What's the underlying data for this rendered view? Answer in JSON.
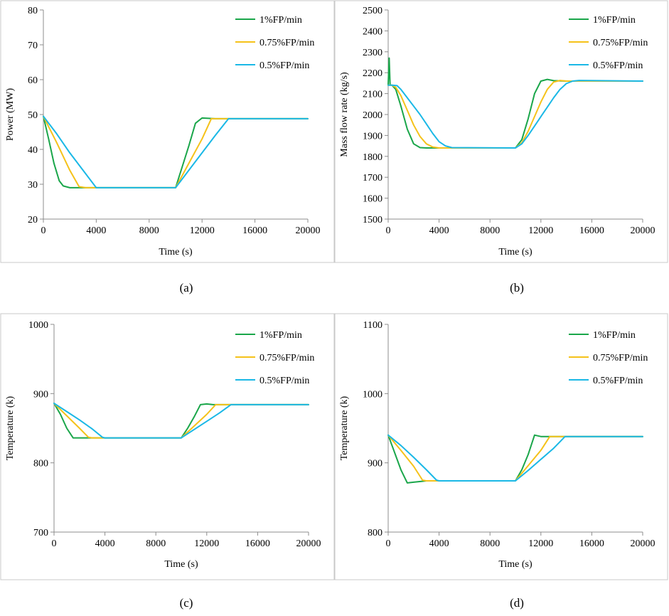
{
  "colors": {
    "series": [
      "#1aa64a",
      "#f5c21a",
      "#1ab8e6"
    ],
    "axis": "#8c8c8c",
    "frame": "#c8c8c8"
  },
  "chart_data": [
    {
      "type": "line",
      "panel_label": "(a)",
      "xlabel": "Time (s)",
      "ylabel": "Power (MW)",
      "xlim": [
        0,
        20000
      ],
      "ylim": [
        20,
        80
      ],
      "xticks": [
        0,
        4000,
        8000,
        12000,
        16000,
        20000
      ],
      "yticks": [
        20,
        30,
        40,
        50,
        60,
        70,
        80
      ],
      "legend_position": "top-right",
      "series": [
        {
          "name": "1%FP/min",
          "x": [
            0,
            400,
            800,
            1200,
            1500,
            2000,
            3000,
            10000,
            10500,
            11000,
            11500,
            12000,
            13000,
            20000
          ],
          "y": [
            49.5,
            43,
            36,
            31,
            29.5,
            29.0,
            29.0,
            29.0,
            35,
            41,
            47.5,
            49,
            48.8,
            48.8
          ]
        },
        {
          "name": "0.75%FP/min",
          "x": [
            0,
            1000,
            2000,
            2700,
            3200,
            4000,
            10000,
            11000,
            12000,
            12700,
            13500,
            20000
          ],
          "y": [
            49.5,
            42,
            34,
            29.3,
            29.0,
            29.0,
            29.0,
            36,
            43,
            48.8,
            48.8,
            48.8
          ]
        },
        {
          "name": "0.5%FP/min",
          "x": [
            0,
            1000,
            2000,
            3000,
            4000,
            10000,
            11000,
            12000,
            13000,
            14000,
            20000
          ],
          "y": [
            49.5,
            44.5,
            39,
            34,
            29,
            29,
            34,
            39,
            44,
            48.8,
            48.8
          ]
        }
      ]
    },
    {
      "type": "line",
      "panel_label": "(b)",
      "xlabel": "Time (s)",
      "ylabel": "Mass flow rate (kg/s)",
      "xlim": [
        0,
        20000
      ],
      "ylim": [
        1500,
        2500
      ],
      "xticks": [
        0,
        4000,
        8000,
        12000,
        16000,
        20000
      ],
      "yticks": [
        1500,
        1600,
        1700,
        1800,
        1900,
        2000,
        2100,
        2200,
        2300,
        2400,
        2500
      ],
      "legend_position": "top-right",
      "series": [
        {
          "name": "1%FP/min",
          "x": [
            0,
            80,
            150,
            300,
            600,
            1000,
            1500,
            2000,
            2500,
            3000,
            4000,
            10000,
            10500,
            11000,
            11500,
            12000,
            12500,
            13000,
            14000,
            20000
          ],
          "y": [
            2140,
            2270,
            2140,
            2140,
            2120,
            2040,
            1930,
            1860,
            1842,
            1840,
            1840,
            1840,
            1880,
            1980,
            2100,
            2160,
            2168,
            2162,
            2160,
            2160
          ]
        },
        {
          "name": "0.75%FP/min",
          "x": [
            0,
            300,
            600,
            1000,
            1500,
            2000,
            2500,
            3000,
            3500,
            4000,
            5000,
            10000,
            10500,
            11000,
            11500,
            12000,
            12500,
            13000,
            13500,
            14000,
            20000
          ],
          "y": [
            2140,
            2140,
            2130,
            2090,
            2020,
            1950,
            1895,
            1860,
            1845,
            1840,
            1840,
            1840,
            1865,
            1920,
            1990,
            2060,
            2120,
            2155,
            2163,
            2160,
            2160
          ]
        },
        {
          "name": "0.5%FP/min",
          "x": [
            0,
            300,
            700,
            1000,
            1500,
            2000,
            2500,
            3000,
            3500,
            4000,
            4500,
            5000,
            10000,
            10500,
            11000,
            11500,
            12000,
            12500,
            13000,
            13500,
            14000,
            14500,
            15000,
            20000
          ],
          "y": [
            2140,
            2140,
            2138,
            2120,
            2080,
            2040,
            2000,
            1955,
            1910,
            1870,
            1850,
            1842,
            1840,
            1860,
            1900,
            1945,
            1990,
            2035,
            2080,
            2120,
            2148,
            2160,
            2163,
            2160
          ]
        }
      ]
    },
    {
      "type": "line",
      "panel_label": "(c)",
      "xlabel": "Time (s)",
      "ylabel": "Temperature (k)",
      "xlim": [
        0,
        20000
      ],
      "ylim": [
        700,
        1000
      ],
      "xticks": [
        0,
        4000,
        8000,
        12000,
        16000,
        20000
      ],
      "yticks": [
        700,
        800,
        900,
        1000
      ],
      "legend_position": "top-right",
      "series": [
        {
          "name": "1%FP/min",
          "x": [
            0,
            500,
            1000,
            1500,
            2000,
            3000,
            4000,
            10000,
            10500,
            11000,
            11500,
            12000,
            12500,
            13000,
            20000
          ],
          "y": [
            886,
            870,
            850,
            836,
            836,
            836,
            836,
            836,
            850,
            866,
            884,
            885,
            884,
            884,
            884
          ]
        },
        {
          "name": "0.75%FP/min",
          "x": [
            0,
            1000,
            2000,
            2700,
            3000,
            4000,
            10000,
            11000,
            12000,
            12700,
            13000,
            20000
          ],
          "y": [
            886,
            868,
            850,
            837,
            836,
            836,
            836,
            853,
            870,
            884,
            884,
            884
          ]
        },
        {
          "name": "0.5%FP/min",
          "x": [
            0,
            1000,
            2000,
            3000,
            3800,
            4000,
            10000,
            11000,
            12000,
            13000,
            13900,
            14500,
            20000
          ],
          "y": [
            886,
            874,
            862,
            849,
            837,
            836,
            836,
            848,
            860,
            872,
            884,
            884,
            884
          ]
        }
      ]
    },
    {
      "type": "line",
      "panel_label": "(d)",
      "xlabel": "Time (s)",
      "ylabel": "Temperature (k)",
      "xlim": [
        0,
        20000
      ],
      "ylim": [
        800,
        1100
      ],
      "xticks": [
        0,
        4000,
        8000,
        12000,
        16000,
        20000
      ],
      "yticks": [
        800,
        900,
        1000,
        1100
      ],
      "legend_position": "top-right",
      "series": [
        {
          "name": "1%FP/min",
          "x": [
            0,
            500,
            1000,
            1500,
            2000,
            3000,
            4000,
            10000,
            10500,
            11000,
            11500,
            12000,
            12500,
            13000,
            20000
          ],
          "y": [
            940,
            915,
            890,
            871,
            872,
            874,
            874,
            874,
            890,
            912,
            940,
            938,
            938,
            938,
            938
          ]
        },
        {
          "name": "0.75%FP/min",
          "x": [
            0,
            1000,
            2000,
            2700,
            3000,
            4000,
            10000,
            11000,
            12000,
            12700,
            13000,
            20000
          ],
          "y": [
            940,
            918,
            895,
            875,
            874,
            874,
            874,
            896,
            918,
            938,
            938,
            938
          ]
        },
        {
          "name": "0.5%FP/min",
          "x": [
            0,
            1000,
            2000,
            3000,
            3800,
            4000,
            10000,
            11000,
            12000,
            13000,
            13900,
            14500,
            20000
          ],
          "y": [
            940,
            925,
            908,
            890,
            875,
            874,
            874,
            889,
            905,
            921,
            938,
            938,
            938
          ]
        }
      ]
    }
  ]
}
